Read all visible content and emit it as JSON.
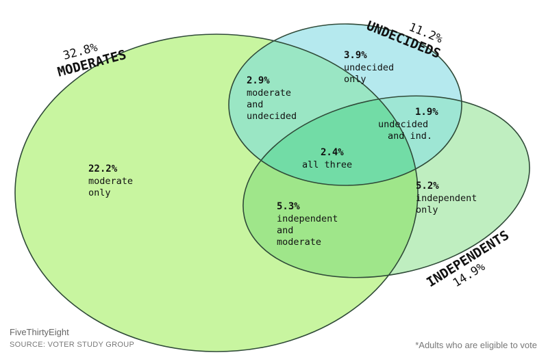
{
  "sets": {
    "moderates": {
      "name": "MODERATES",
      "percent": "32.8%",
      "color": "#c8f5a0"
    },
    "undecideds": {
      "name": "UNDECIDEDS",
      "percent": "11.2%",
      "color": "#b5e9ee"
    },
    "independents": {
      "name": "INDEPENDENTS",
      "percent": "14.9%",
      "color": "#bfeec0"
    }
  },
  "regions": {
    "moderate_only": {
      "percent": "22.2%",
      "lines": [
        "moderate",
        "only"
      ]
    },
    "undecided_only": {
      "percent": "3.9%",
      "lines": [
        "undecided",
        "only"
      ]
    },
    "independent_only": {
      "percent": "5.2%",
      "lines": [
        "independent",
        "only"
      ]
    },
    "moderate_undecided": {
      "percent": "2.9%",
      "lines": [
        "moderate",
        "and",
        "undecided"
      ]
    },
    "undecided_independent": {
      "percent": "1.9%",
      "lines": [
        "undecided",
        "and ind."
      ]
    },
    "independent_moderate": {
      "percent": "5.3%",
      "lines": [
        "independent",
        "and",
        "moderate"
      ]
    },
    "all_three": {
      "percent": "2.4%",
      "lines": [
        "all three"
      ]
    }
  },
  "footer": {
    "brand": "FiveThirtyEight",
    "source": "SOURCE: VOTER STUDY GROUP",
    "note": "*Adults who are eligible to vote"
  }
}
